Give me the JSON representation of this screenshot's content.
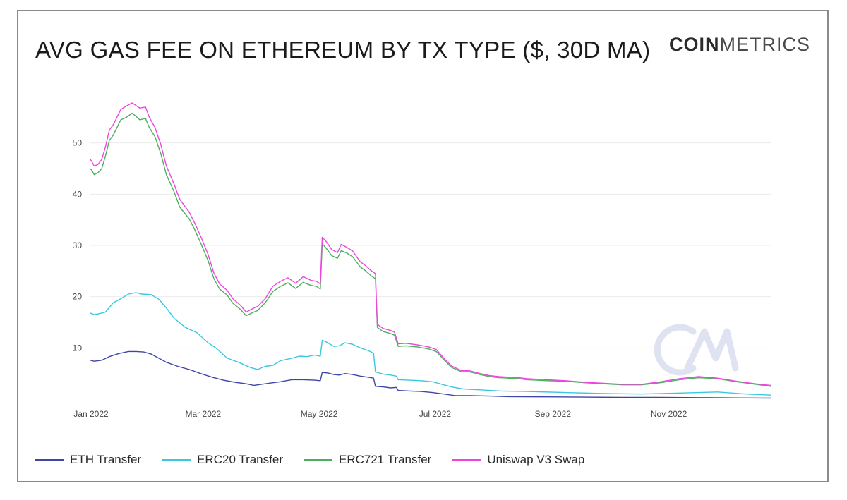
{
  "header": {
    "title": "AVG GAS FEE ON ETHEREUM BY TX TYPE ($, 30D MA)",
    "logo_bold": "COIN",
    "logo_light": "METRICS"
  },
  "chart_data": {
    "type": "line",
    "title": "AVG GAS FEE ON ETHEREUM BY TX TYPE ($, 30D MA)",
    "xlabel": "",
    "ylabel": "",
    "ylim": [
      0,
      60
    ],
    "xlim": [
      0,
      358
    ],
    "grid": true,
    "legend_position": "bottom",
    "x_ticks": [
      {
        "label": "Jan 2022",
        "x": 0
      },
      {
        "label": "Mar 2022",
        "x": 59
      },
      {
        "label": "May 2022",
        "x": 120
      },
      {
        "label": "Jul 2022",
        "x": 181
      },
      {
        "label": "Sep 2022",
        "x": 243
      },
      {
        "label": "Nov 2022",
        "x": 304
      }
    ],
    "y_ticks": [
      10,
      20,
      30,
      40,
      50
    ],
    "watermark": "CM",
    "series": [
      {
        "name": "ETH Transfer",
        "color": "#3f47a6",
        "points": [
          [
            0,
            7.6
          ],
          [
            2,
            7.4
          ],
          [
            6,
            7.6
          ],
          [
            10,
            8.3
          ],
          [
            15,
            8.9
          ],
          [
            20,
            9.3
          ],
          [
            24,
            9.3
          ],
          [
            28,
            9.2
          ],
          [
            32,
            8.8
          ],
          [
            36,
            8.0
          ],
          [
            40,
            7.2
          ],
          [
            46,
            6.4
          ],
          [
            52,
            5.8
          ],
          [
            58,
            5.0
          ],
          [
            64,
            4.3
          ],
          [
            70,
            3.7
          ],
          [
            76,
            3.3
          ],
          [
            82,
            3.0
          ],
          [
            86,
            2.7
          ],
          [
            90,
            2.9
          ],
          [
            96,
            3.2
          ],
          [
            100,
            3.4
          ],
          [
            106,
            3.8
          ],
          [
            112,
            3.8
          ],
          [
            118,
            3.7
          ],
          [
            121,
            3.6
          ],
          [
            122,
            5.2
          ],
          [
            125,
            5.1
          ],
          [
            128,
            4.8
          ],
          [
            131,
            4.7
          ],
          [
            134,
            5.0
          ],
          [
            138,
            4.8
          ],
          [
            142,
            4.5
          ],
          [
            146,
            4.3
          ],
          [
            149,
            4.1
          ],
          [
            150,
            2.5
          ],
          [
            154,
            2.4
          ],
          [
            158,
            2.2
          ],
          [
            161,
            2.3
          ],
          [
            162,
            1.7
          ],
          [
            168,
            1.6
          ],
          [
            174,
            1.5
          ],
          [
            180,
            1.3
          ],
          [
            186,
            1.0
          ],
          [
            192,
            0.7
          ],
          [
            200,
            0.7
          ],
          [
            210,
            0.6
          ],
          [
            220,
            0.5
          ],
          [
            240,
            0.45
          ],
          [
            260,
            0.4
          ],
          [
            280,
            0.35
          ],
          [
            300,
            0.35
          ],
          [
            320,
            0.3
          ],
          [
            340,
            0.25
          ],
          [
            358,
            0.2
          ]
        ]
      },
      {
        "name": "ERC20 Transfer",
        "color": "#3bc8de",
        "points": [
          [
            0,
            16.8
          ],
          [
            2,
            16.5
          ],
          [
            5,
            16.7
          ],
          [
            8,
            17.0
          ],
          [
            12,
            18.8
          ],
          [
            16,
            19.6
          ],
          [
            20,
            20.5
          ],
          [
            24,
            20.8
          ],
          [
            27,
            20.5
          ],
          [
            32,
            20.4
          ],
          [
            36,
            19.5
          ],
          [
            40,
            17.8
          ],
          [
            44,
            15.8
          ],
          [
            50,
            14.0
          ],
          [
            56,
            13.0
          ],
          [
            62,
            11.0
          ],
          [
            66,
            10.0
          ],
          [
            72,
            8.0
          ],
          [
            78,
            7.2
          ],
          [
            84,
            6.2
          ],
          [
            88,
            5.8
          ],
          [
            92,
            6.4
          ],
          [
            96,
            6.6
          ],
          [
            100,
            7.5
          ],
          [
            106,
            8.0
          ],
          [
            110,
            8.4
          ],
          [
            114,
            8.3
          ],
          [
            118,
            8.6
          ],
          [
            121,
            8.4
          ],
          [
            122,
            11.5
          ],
          [
            124,
            11.2
          ],
          [
            128,
            10.3
          ],
          [
            131,
            10.4
          ],
          [
            134,
            11.0
          ],
          [
            138,
            10.7
          ],
          [
            142,
            10.0
          ],
          [
            146,
            9.5
          ],
          [
            149,
            9.0
          ],
          [
            150,
            5.3
          ],
          [
            154,
            4.9
          ],
          [
            158,
            4.7
          ],
          [
            161,
            4.5
          ],
          [
            162,
            3.8
          ],
          [
            168,
            3.7
          ],
          [
            174,
            3.6
          ],
          [
            180,
            3.4
          ],
          [
            184,
            3.0
          ],
          [
            190,
            2.4
          ],
          [
            196,
            2.0
          ],
          [
            206,
            1.8
          ],
          [
            216,
            1.6
          ],
          [
            230,
            1.5
          ],
          [
            250,
            1.3
          ],
          [
            270,
            1.1
          ],
          [
            290,
            1.0
          ],
          [
            310,
            1.2
          ],
          [
            330,
            1.4
          ],
          [
            345,
            1.0
          ],
          [
            358,
            0.8
          ]
        ]
      },
      {
        "name": "ERC721 Transfer",
        "color": "#4caf60",
        "points": [
          [
            0,
            45.0
          ],
          [
            1,
            44.5
          ],
          [
            2,
            43.8
          ],
          [
            4,
            44.2
          ],
          [
            6,
            45.0
          ],
          [
            8,
            47.5
          ],
          [
            10,
            50.5
          ],
          [
            12,
            51.5
          ],
          [
            14,
            53.0
          ],
          [
            16,
            54.5
          ],
          [
            19,
            55.0
          ],
          [
            22,
            55.8
          ],
          [
            24,
            55.2
          ],
          [
            26,
            54.5
          ],
          [
            29,
            54.8
          ],
          [
            31,
            53.0
          ],
          [
            34,
            51.2
          ],
          [
            37,
            48.0
          ],
          [
            40,
            43.8
          ],
          [
            44,
            40.5
          ],
          [
            47,
            37.5
          ],
          [
            52,
            35.2
          ],
          [
            55,
            33.0
          ],
          [
            58,
            30.5
          ],
          [
            62,
            27.0
          ],
          [
            65,
            23.5
          ],
          [
            68,
            21.5
          ],
          [
            72,
            20.3
          ],
          [
            75,
            18.7
          ],
          [
            79,
            17.5
          ],
          [
            82,
            16.3
          ],
          [
            86,
            17.0
          ],
          [
            88,
            17.3
          ],
          [
            92,
            18.8
          ],
          [
            96,
            21.0
          ],
          [
            100,
            22.0
          ],
          [
            104,
            22.7
          ],
          [
            108,
            21.6
          ],
          [
            112,
            22.8
          ],
          [
            116,
            22.2
          ],
          [
            119,
            22.0
          ],
          [
            121,
            21.5
          ],
          [
            122,
            30.3
          ],
          [
            124,
            29.5
          ],
          [
            127,
            28.0
          ],
          [
            130,
            27.5
          ],
          [
            132,
            29.0
          ],
          [
            135,
            28.5
          ],
          [
            138,
            27.8
          ],
          [
            142,
            25.8
          ],
          [
            145,
            25.0
          ],
          [
            148,
            24.0
          ],
          [
            150,
            23.5
          ],
          [
            151,
            14.0
          ],
          [
            154,
            13.2
          ],
          [
            158,
            12.8
          ],
          [
            160,
            12.5
          ],
          [
            162,
            10.3
          ],
          [
            166,
            10.4
          ],
          [
            172,
            10.2
          ],
          [
            178,
            9.8
          ],
          [
            182,
            9.3
          ],
          [
            186,
            7.7
          ],
          [
            190,
            6.2
          ],
          [
            195,
            5.4
          ],
          [
            200,
            5.3
          ],
          [
            205,
            4.8
          ],
          [
            210,
            4.4
          ],
          [
            215,
            4.2
          ],
          [
            220,
            4.1
          ],
          [
            225,
            4.0
          ],
          [
            230,
            3.8
          ],
          [
            240,
            3.6
          ],
          [
            250,
            3.5
          ],
          [
            260,
            3.2
          ],
          [
            270,
            3.0
          ],
          [
            280,
            2.8
          ],
          [
            290,
            2.8
          ],
          [
            300,
            3.2
          ],
          [
            310,
            3.8
          ],
          [
            320,
            4.2
          ],
          [
            330,
            4.0
          ],
          [
            340,
            3.4
          ],
          [
            350,
            2.9
          ],
          [
            358,
            2.5
          ]
        ]
      },
      {
        "name": "Uniswap V3 Swap",
        "color": "#ee45e0",
        "points": [
          [
            0,
            46.8
          ],
          [
            1,
            46.2
          ],
          [
            2,
            45.5
          ],
          [
            4,
            45.8
          ],
          [
            6,
            46.8
          ],
          [
            8,
            49.3
          ],
          [
            10,
            52.5
          ],
          [
            12,
            53.5
          ],
          [
            14,
            55.0
          ],
          [
            16,
            56.5
          ],
          [
            19,
            57.2
          ],
          [
            22,
            57.8
          ],
          [
            24,
            57.3
          ],
          [
            26,
            56.8
          ],
          [
            29,
            57.0
          ],
          [
            31,
            55.0
          ],
          [
            34,
            53.0
          ],
          [
            37,
            49.8
          ],
          [
            40,
            45.5
          ],
          [
            44,
            42.0
          ],
          [
            47,
            39.0
          ],
          [
            52,
            36.5
          ],
          [
            55,
            34.3
          ],
          [
            58,
            31.8
          ],
          [
            62,
            28.2
          ],
          [
            65,
            24.6
          ],
          [
            68,
            22.5
          ],
          [
            72,
            21.2
          ],
          [
            75,
            19.6
          ],
          [
            79,
            18.3
          ],
          [
            82,
            17.0
          ],
          [
            86,
            17.8
          ],
          [
            88,
            18.1
          ],
          [
            92,
            19.6
          ],
          [
            96,
            22.0
          ],
          [
            100,
            23.0
          ],
          [
            104,
            23.7
          ],
          [
            108,
            22.6
          ],
          [
            112,
            23.9
          ],
          [
            116,
            23.2
          ],
          [
            119,
            23.0
          ],
          [
            121,
            22.5
          ],
          [
            122,
            31.6
          ],
          [
            124,
            30.8
          ],
          [
            127,
            29.2
          ],
          [
            130,
            28.6
          ],
          [
            132,
            30.2
          ],
          [
            135,
            29.6
          ],
          [
            138,
            28.9
          ],
          [
            142,
            26.8
          ],
          [
            145,
            26.0
          ],
          [
            148,
            25.0
          ],
          [
            150,
            24.5
          ],
          [
            151,
            14.6
          ],
          [
            154,
            13.8
          ],
          [
            158,
            13.4
          ],
          [
            160,
            13.1
          ],
          [
            162,
            10.8
          ],
          [
            166,
            10.9
          ],
          [
            172,
            10.6
          ],
          [
            178,
            10.2
          ],
          [
            182,
            9.7
          ],
          [
            186,
            8.0
          ],
          [
            190,
            6.5
          ],
          [
            195,
            5.6
          ],
          [
            200,
            5.5
          ],
          [
            205,
            5.0
          ],
          [
            210,
            4.6
          ],
          [
            215,
            4.4
          ],
          [
            220,
            4.3
          ],
          [
            225,
            4.2
          ],
          [
            230,
            4.0
          ],
          [
            240,
            3.8
          ],
          [
            250,
            3.6
          ],
          [
            260,
            3.3
          ],
          [
            270,
            3.1
          ],
          [
            280,
            2.9
          ],
          [
            290,
            2.9
          ],
          [
            300,
            3.4
          ],
          [
            310,
            4.0
          ],
          [
            320,
            4.4
          ],
          [
            330,
            4.1
          ],
          [
            340,
            3.5
          ],
          [
            350,
            3.0
          ],
          [
            358,
            2.7
          ]
        ]
      }
    ]
  },
  "legend": {
    "items": [
      {
        "label": "ETH Transfer",
        "color": "#3f47a6"
      },
      {
        "label": "ERC20 Transfer",
        "color": "#3bc8de"
      },
      {
        "label": "ERC721 Transfer",
        "color": "#4caf60"
      },
      {
        "label": "Uniswap V3 Swap",
        "color": "#ee45e0"
      }
    ]
  }
}
